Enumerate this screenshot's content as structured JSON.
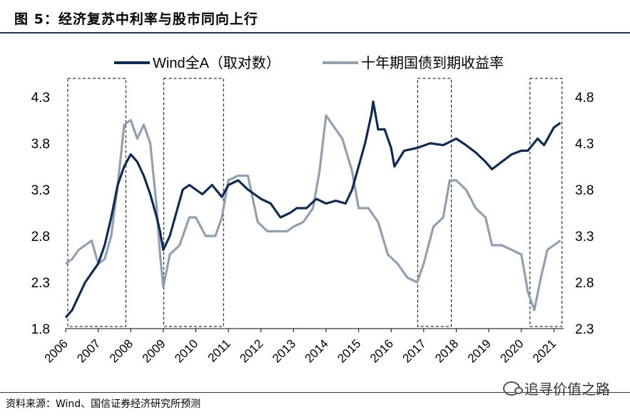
{
  "header": {
    "title": "图 5：经济复苏中利率与股市同向上行"
  },
  "footer": {
    "source": "资料来源：Wind、国信证券经济研究所预测",
    "watermark": "追寻价值之路"
  },
  "chart_data": {
    "type": "line",
    "title": "图 5：经济复苏中利率与股市同向上行",
    "legend_position": "top",
    "x_ticks": [
      "2006",
      "2007",
      "2008",
      "2009",
      "2010",
      "2011",
      "2012",
      "2013",
      "2014",
      "2015",
      "2016",
      "2017",
      "2018",
      "2019",
      "2020",
      "2021"
    ],
    "y_left": {
      "ticks": [
        "1.8",
        "2.3",
        "2.8",
        "3.3",
        "3.8",
        "4.3"
      ],
      "lim": [
        1.8,
        4.3
      ]
    },
    "y_right": {
      "ticks": [
        "2.3",
        "2.8",
        "3.3",
        "3.8",
        "4.3",
        "4.8"
      ],
      "lim": [
        2.3,
        4.8
      ]
    },
    "grid": false,
    "series": [
      {
        "name": "Wind全A（取对数）",
        "axis": "left",
        "color": "#0d2b55",
        "x": [
          2006.0,
          2006.2,
          2006.4,
          2006.6,
          2006.8,
          2007.0,
          2007.2,
          2007.4,
          2007.6,
          2007.8,
          2008.0,
          2008.2,
          2008.4,
          2008.6,
          2008.8,
          2008.9,
          2009.0,
          2009.2,
          2009.4,
          2009.6,
          2009.8,
          2010.0,
          2010.2,
          2010.5,
          2010.8,
          2011.0,
          2011.3,
          2011.6,
          2012.0,
          2012.3,
          2012.6,
          2012.9,
          2013.1,
          2013.4,
          2013.7,
          2014.0,
          2014.3,
          2014.6,
          2014.8,
          2015.0,
          2015.2,
          2015.4,
          2015.45,
          2015.6,
          2015.8,
          2016.0,
          2016.1,
          2016.4,
          2016.8,
          2017.2,
          2017.6,
          2018.0,
          2018.3,
          2018.6,
          2018.9,
          2019.1,
          2019.4,
          2019.7,
          2020.0,
          2020.2,
          2020.5,
          2020.7,
          2021.0,
          2021.2
        ],
        "values": [
          1.92,
          2.0,
          2.15,
          2.3,
          2.4,
          2.5,
          2.7,
          3.0,
          3.35,
          3.55,
          3.68,
          3.6,
          3.45,
          3.25,
          3.0,
          2.85,
          2.65,
          2.8,
          3.05,
          3.3,
          3.35,
          3.3,
          3.25,
          3.35,
          3.22,
          3.35,
          3.4,
          3.3,
          3.2,
          3.15,
          3.0,
          3.05,
          3.1,
          3.1,
          3.2,
          3.15,
          3.18,
          3.15,
          3.3,
          3.55,
          3.8,
          4.12,
          4.25,
          3.95,
          3.95,
          3.75,
          3.55,
          3.72,
          3.75,
          3.8,
          3.78,
          3.85,
          3.78,
          3.7,
          3.6,
          3.52,
          3.6,
          3.68,
          3.72,
          3.72,
          3.85,
          3.78,
          3.97,
          4.02
        ]
      },
      {
        "name": "十年期国债到期收益率",
        "axis": "right",
        "color": "#8fa0b3",
        "x": [
          2006.0,
          2006.2,
          2006.4,
          2006.6,
          2006.8,
          2007.0,
          2007.2,
          2007.4,
          2007.6,
          2007.8,
          2008.0,
          2008.2,
          2008.4,
          2008.6,
          2008.8,
          2008.9,
          2009.0,
          2009.2,
          2009.5,
          2009.8,
          2010.0,
          2010.3,
          2010.6,
          2010.8,
          2011.0,
          2011.3,
          2011.6,
          2011.9,
          2012.2,
          2012.5,
          2012.8,
          2013.0,
          2013.3,
          2013.6,
          2013.8,
          2014.0,
          2014.2,
          2014.5,
          2014.8,
          2015.0,
          2015.3,
          2015.6,
          2015.9,
          2016.2,
          2016.5,
          2016.8,
          2017.0,
          2017.3,
          2017.6,
          2017.8,
          2018.0,
          2018.3,
          2018.6,
          2018.9,
          2019.1,
          2019.4,
          2019.7,
          2020.0,
          2020.2,
          2020.4,
          2020.6,
          2020.8,
          2021.0,
          2021.2
        ],
        "values": [
          3.0,
          3.05,
          3.15,
          3.2,
          3.25,
          3.0,
          3.05,
          3.3,
          3.85,
          4.5,
          4.55,
          4.35,
          4.5,
          4.3,
          3.6,
          3.1,
          2.75,
          3.1,
          3.2,
          3.5,
          3.5,
          3.3,
          3.3,
          3.5,
          3.9,
          3.95,
          3.95,
          3.45,
          3.35,
          3.35,
          3.35,
          3.4,
          3.45,
          3.6,
          4.0,
          4.6,
          4.5,
          4.35,
          4.0,
          3.6,
          3.6,
          3.45,
          3.1,
          3.0,
          2.85,
          2.8,
          3.0,
          3.4,
          3.5,
          3.9,
          3.9,
          3.8,
          3.6,
          3.5,
          3.2,
          3.2,
          3.15,
          3.1,
          2.7,
          2.5,
          2.85,
          3.15,
          3.2,
          3.25
        ]
      }
    ],
    "highlight_periods": [
      [
        2006.0,
        2007.85
      ],
      [
        2008.95,
        2010.85
      ],
      [
        2016.75,
        2017.85
      ],
      [
        2020.2,
        2021.25
      ]
    ]
  }
}
